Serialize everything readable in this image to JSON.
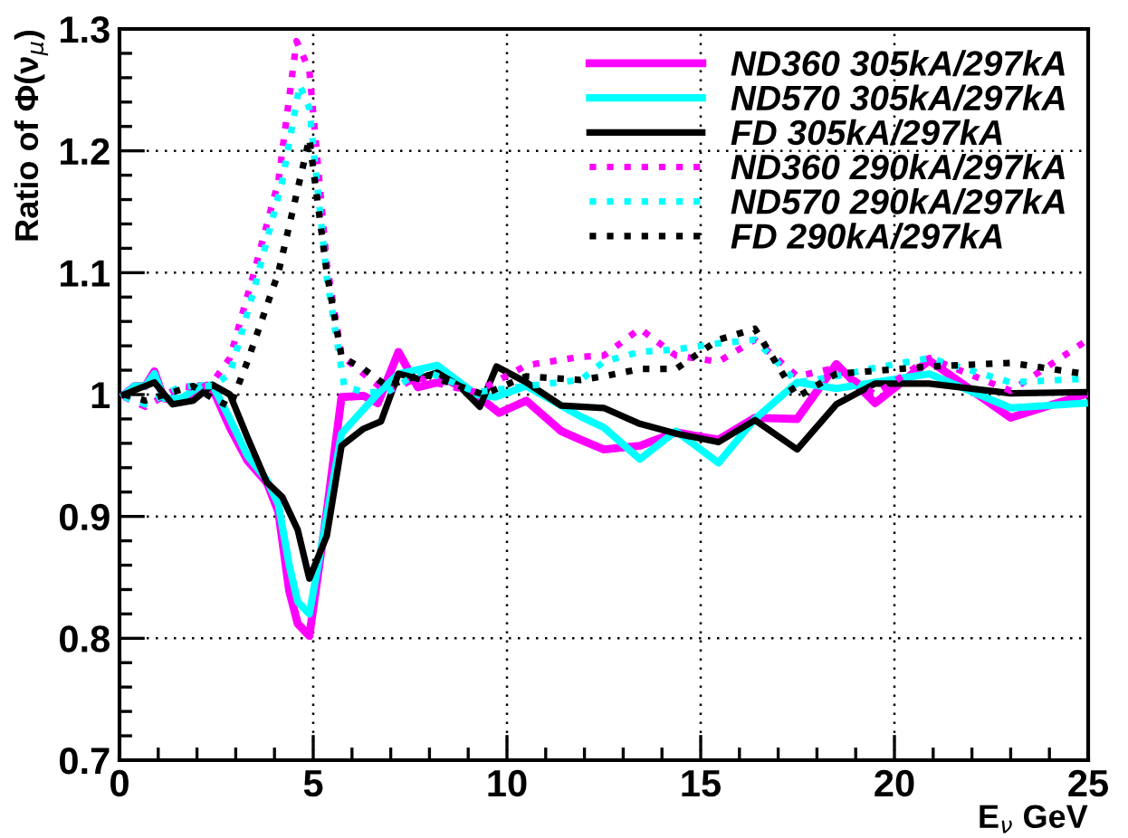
{
  "chart_data": {
    "type": "line",
    "xlabel": "E$_{ν}$ GeV",
    "ylabel": "Ratio of Φ(ν$_{μ}$)",
    "xlim": [
      0,
      25
    ],
    "xticks": [
      0,
      5,
      10,
      15,
      20,
      25
    ],
    "ylim": [
      0.7,
      1.3
    ],
    "yticks": [
      0.7,
      0.8,
      0.9,
      1,
      1.1,
      1.2,
      1.3
    ],
    "grid": true,
    "legend": "top right",
    "marker": "none",
    "series": [
      {
        "name": "ND360 305kA/297kA",
        "color": "#ff00ff",
        "line_style": "solid",
        "x": [
          0.12,
          0.39,
          0.67,
          0.9,
          1.14,
          1.6,
          2.07,
          2.4,
          2.85,
          3.3,
          3.8,
          4.1,
          4.38,
          4.6,
          4.9,
          5.35,
          5.73,
          6.3,
          6.67,
          7.2,
          7.7,
          8.46,
          9.2,
          9.8,
          10.5,
          11.4,
          11.9,
          12.5,
          13.43,
          14.36,
          15.46,
          16.4,
          17.49,
          18.5,
          19.5,
          20.9,
          23.0,
          24.9
        ],
        "values": [
          1.0,
          1.007,
          1.007,
          1.019,
          0.997,
          0.995,
          1.007,
          1.005,
          0.973,
          0.946,
          0.928,
          0.904,
          0.839,
          0.812,
          0.802,
          0.904,
          0.998,
          0.999,
          0.993,
          1.035,
          1.006,
          1.012,
          1.0,
          0.985,
          0.995,
          0.97,
          0.963,
          0.955,
          0.958,
          0.969,
          0.963,
          0.981,
          0.98,
          1.025,
          0.993,
          1.028,
          0.981,
          1.0
        ]
      },
      {
        "name": "ND570 305kA/297kA",
        "color": "#00ffff",
        "line_style": "solid",
        "x": [
          0.12,
          0.39,
          0.67,
          0.9,
          1.14,
          1.6,
          2.07,
          2.4,
          2.85,
          3.3,
          3.8,
          4.1,
          4.38,
          4.6,
          4.9,
          5.35,
          5.73,
          6.7,
          7.2,
          8.2,
          9.2,
          9.7,
          10.5,
          11.9,
          12.5,
          13.43,
          14.36,
          15.46,
          16.4,
          17.49,
          18.5,
          20.9,
          23.0,
          24.9
        ],
        "values": [
          1.0,
          1.007,
          1.007,
          1.017,
          0.997,
          0.997,
          1.007,
          1.008,
          0.98,
          0.95,
          0.93,
          0.91,
          0.86,
          0.83,
          0.82,
          0.9,
          0.968,
          1.002,
          1.017,
          1.024,
          1.0,
          0.998,
          1.007,
          0.982,
          0.973,
          0.947,
          0.97,
          0.944,
          0.98,
          1.01,
          1.005,
          1.017,
          0.989,
          0.993
        ]
      },
      {
        "name": "FD 305kA/297kA",
        "color": "#000000",
        "line_style": "solid",
        "x": [
          0.12,
          0.5,
          0.9,
          1.37,
          1.9,
          2.4,
          2.85,
          3.3,
          3.8,
          4.2,
          4.6,
          4.9,
          5.35,
          5.73,
          6.3,
          6.75,
          7.2,
          7.7,
          8.2,
          8.77,
          9.3,
          9.73,
          10.5,
          11.4,
          12.5,
          13.43,
          14.36,
          15.46,
          16.4,
          17.49,
          18.5,
          19.5,
          20.9,
          23.0,
          24.9
        ],
        "values": [
          1.0,
          1.005,
          1.01,
          0.992,
          0.995,
          1.008,
          1.0,
          0.965,
          0.928,
          0.916,
          0.889,
          0.849,
          0.884,
          0.958,
          0.972,
          0.978,
          1.017,
          1.013,
          1.018,
          1.007,
          0.99,
          1.023,
          1.01,
          0.991,
          0.989,
          0.976,
          0.968,
          0.961,
          0.979,
          0.955,
          0.992,
          1.009,
          1.009,
          1.001,
          1.002
        ]
      },
      {
        "name": "ND360 290kA/297kA",
        "color": "#ff00ff",
        "line_style": "dotted",
        "x": [
          0.12,
          0.67,
          1.6,
          2.07,
          2.4,
          2.85,
          3.47,
          4.1,
          4.57,
          4.9,
          5.35,
          5.73,
          6.3,
          6.9,
          7.7,
          8.46,
          9.2,
          10.5,
          11.9,
          12.5,
          13.43,
          14.36,
          15.46,
          16.4,
          17.49,
          18.5,
          19.5,
          20.9,
          23.0,
          24.9
        ],
        "values": [
          0.998,
          0.99,
          1.007,
          1.005,
          1.01,
          1.03,
          1.1,
          1.175,
          1.29,
          1.266,
          1.107,
          1.032,
          1.017,
          1.002,
          1.014,
          1.007,
          1.002,
          1.024,
          1.031,
          1.032,
          1.054,
          1.032,
          1.027,
          1.045,
          1.015,
          1.022,
          1.0,
          1.03,
          1.003,
          1.043
        ]
      },
      {
        "name": "ND570 290kA/297kA",
        "color": "#00ffff",
        "line_style": "dotted",
        "x": [
          0.12,
          0.67,
          1.6,
          2.4,
          2.85,
          3.47,
          4.2,
          4.65,
          4.9,
          5.35,
          5.8,
          6.3,
          6.9,
          7.84,
          9.2,
          10.5,
          11.9,
          12.5,
          13.43,
          14.36,
          15.46,
          16.4,
          17.49,
          18.5,
          19.5,
          20.9,
          23.0,
          24.9
        ],
        "values": [
          0.998,
          0.992,
          1.007,
          1.007,
          1.017,
          1.086,
          1.175,
          1.254,
          1.235,
          1.096,
          1.007,
          1.002,
          1.002,
          1.02,
          1.002,
          1.007,
          1.012,
          1.027,
          1.035,
          1.037,
          1.042,
          1.045,
          1.01,
          1.015,
          1.022,
          1.03,
          1.01,
          1.013
        ]
      },
      {
        "name": "FD 290kA/297kA",
        "color": "#000000",
        "line_style": "dotted",
        "x": [
          0.12,
          0.67,
          1.37,
          1.9,
          2.4,
          2.85,
          3.3,
          4.1,
          4.9,
          5.35,
          5.73,
          6.3,
          6.9,
          7.84,
          8.77,
          9.39,
          10.5,
          11.9,
          12.5,
          13.43,
          14.36,
          15.46,
          16.4,
          17.49,
          18.5,
          20.9,
          23.0,
          24.9
        ],
        "values": [
          1.0,
          0.995,
          1.002,
          1.007,
          0.997,
          0.99,
          1.027,
          1.1,
          1.21,
          1.1,
          1.031,
          1.021,
          1.007,
          1.017,
          1.007,
          1.0,
          1.015,
          1.012,
          1.015,
          1.021,
          1.021,
          1.045,
          1.054,
          0.998,
          1.017,
          1.023,
          1.026,
          1.017
        ]
      }
    ]
  }
}
